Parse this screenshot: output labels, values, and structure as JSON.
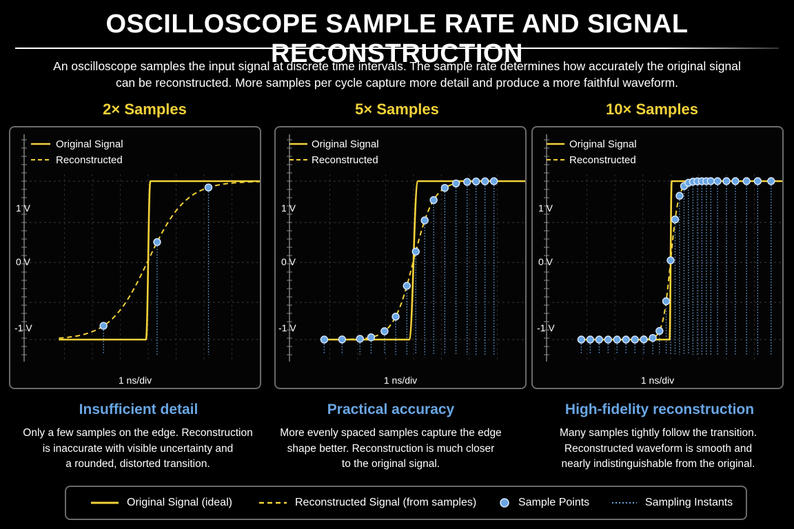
{
  "title": "OSCILLOSCOPE SAMPLE RATE AND SIGNAL RECONSTRUCTION",
  "intro": "An oscilloscope samples the input signal at discrete time intervals. The sample rate determines how accurately the original signal can be reconstructed. More samples per cycle capture more detail and produce a more faithful waveform.",
  "colors": {
    "signal": "#f3d23a",
    "sample_point_fill": "#6aa6e4",
    "sample_point_stroke": "#d8e8ff",
    "sampling_instant": "#6aa6e4",
    "verdict_text": "#6aa6e4",
    "grid": "#3a3a3a",
    "border": "#6a6a6a"
  },
  "panels": [
    {
      "heading": "2× Samples",
      "legend": {
        "original": "Original Signal",
        "reconstructed": "Reconstructed"
      },
      "axis": {
        "high": "1 V",
        "zero": "0 V",
        "low": "-1 V",
        "timebase": "1 ns/div"
      },
      "edge_width": 0.02,
      "recon_tau": 0.17,
      "samples": [
        0.3,
        0.54,
        0.77
      ],
      "verdict": "Insufficient detail",
      "desc": [
        "Only a few samples on the edge. Reconstruction",
        "is inaccurate with visible uncertainty and",
        "a rounded, distorted transition."
      ]
    },
    {
      "heading": "5× Samples",
      "legend": {
        "original": "Original Signal",
        "reconstructed": "Reconstructed"
      },
      "axis": {
        "high": "1 V",
        "zero": "0 V",
        "low": "-1 V",
        "timebase": "1 ns/div"
      },
      "edge_width": 0.04,
      "recon_tau": 0.09,
      "samples": [
        0.1,
        0.18,
        0.26,
        0.31,
        0.37,
        0.42,
        0.47,
        0.51,
        0.55,
        0.59,
        0.64,
        0.69,
        0.74,
        0.78,
        0.82,
        0.86
      ],
      "verdict": "Practical accuracy",
      "desc": [
        "More evenly spaced samples capture the edge",
        "shape better. Reconstruction is much closer",
        "to the original signal."
      ]
    },
    {
      "heading": "10× Samples",
      "legend": {
        "original": "Original Signal",
        "reconstructed": "Reconstructed"
      },
      "axis": {
        "high": "1 V",
        "zero": "0 V",
        "low": "-1 V",
        "timebase": "1 ns/div"
      },
      "edge_width": 0.01,
      "recon_tau": 0.035,
      "samples": [
        0.1,
        0.14,
        0.18,
        0.22,
        0.26,
        0.3,
        0.34,
        0.38,
        0.42,
        0.45,
        0.48,
        0.5,
        0.52,
        0.54,
        0.56,
        0.58,
        0.6,
        0.62,
        0.64,
        0.66,
        0.68,
        0.71,
        0.75,
        0.79,
        0.84,
        0.89,
        0.95
      ],
      "verdict": "High-fidelity reconstruction",
      "desc": [
        "Many samples tightly follow the transition.",
        "Reconstructed waveform is smooth and",
        "nearly indistinguishable from the original."
      ]
    }
  ],
  "legend": {
    "original": "Original Signal (ideal)",
    "reconstructed": "Reconstructed Signal (from samples)",
    "points": "Sample Points",
    "instants": "Sampling Instants"
  }
}
